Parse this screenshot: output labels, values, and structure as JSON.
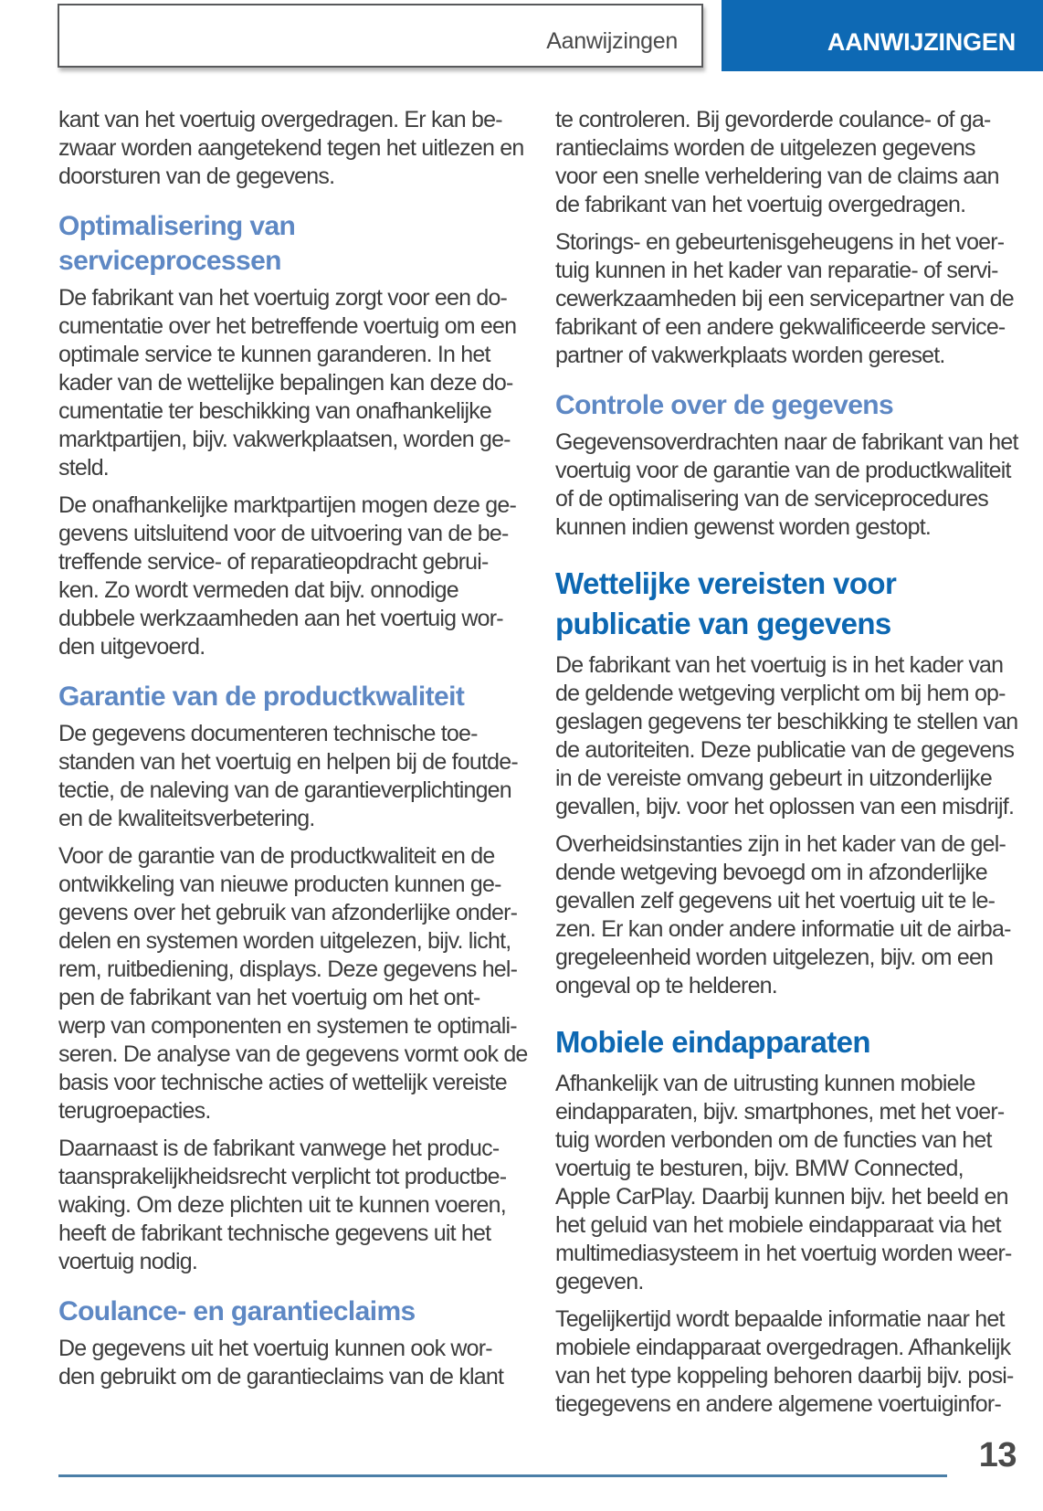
{
  "colors": {
    "tab_blue": "#0e69b4",
    "h2_blue": "#0d68b2",
    "h3_blue": "#5e88c4",
    "rule_blue": "#4b7fa7",
    "body_text": "#3d3d3d",
    "muted_text": "#4a4a4a"
  },
  "header": {
    "running_title": "Aanwijzingen",
    "chapter_tab": "AANWIJZINGEN"
  },
  "footer": {
    "page_number": "13"
  },
  "columns": {
    "left": [
      {
        "type": "p",
        "text": "kant van het voertuig overgedragen. Er kan be-\nzwaar worden aangetekend tegen het uitlezen en\ndoorsturen van de gegevens."
      },
      {
        "type": "h3",
        "text": "Optimalisering van\nserviceprocessen"
      },
      {
        "type": "p",
        "text": "De fabrikant van het voertuig zorgt voor een do-\ncumentatie over het betreffende voertuig om een\noptimale service te kunnen garanderen. In het\nkader van de wettelijke bepalingen kan deze do-\ncumentatie ter beschikking van onafhankelijke\nmarktpartijen, bijv. vakwerkplaatsen, worden ge-\nsteld."
      },
      {
        "type": "p",
        "text": "De onafhankelijke marktpartijen mogen deze ge-\ngevens uitsluitend voor de uitvoering van de be-\ntreffende service- of reparatieopdracht gebrui-\nken. Zo wordt vermeden dat bijv. onnodige\ndubbele werkzaamheden aan het voertuig wor-\nden uitgevoerd."
      },
      {
        "type": "h3",
        "text": "Garantie van de productkwaliteit"
      },
      {
        "type": "p",
        "text": "De gegevens documenteren technische toe-\nstanden van het voertuig en helpen bij de foutde-\ntectie, de naleving van de garantieverplichtingen\nen de kwaliteitsverbetering."
      },
      {
        "type": "p",
        "text": "Voor de garantie van de productkwaliteit en de\nontwikkeling van nieuwe producten kunnen ge-\ngevens over het gebruik van afzonderlijke onder-\ndelen en systemen worden uitgelezen, bijv. licht,\nrem, ruitbediening, displays. Deze gegevens hel-\npen de fabrikant van het voertuig om het ont-\nwerp van componenten en systemen te optimali-\nseren. De analyse van de gegevens vormt ook de\nbasis voor technische acties of wettelijk vereiste\nterugroepacties."
      },
      {
        "type": "p",
        "text": "Daarnaast is de fabrikant vanwege het produc-\ntaansprakelijkheidsrecht verplicht tot productbe-\nwaking. Om deze plichten uit te kunnen voeren,\nheeft de fabrikant technische gegevens uit het\nvoertuig nodig."
      },
      {
        "type": "h3",
        "text": "Coulance- en garantieclaims"
      },
      {
        "type": "p",
        "text": "De gegevens uit het voertuig kunnen ook wor-\nden gebruikt om de garantieclaims van de klant"
      }
    ],
    "right": [
      {
        "type": "p",
        "text": "te controleren. Bij gevorderde coulance- of ga-\nrantieclaims worden de uitgelezen gegevens\nvoor een snelle verheldering van de claims aan\nde fabrikant van het voertuig overgedragen."
      },
      {
        "type": "p",
        "text": "Storings- en gebeurtenisgeheugens in het voer-\ntuig kunnen in het kader van reparatie- of servi-\ncewerkzaamheden bij een servicepartner van de\nfabrikant of een andere gekwalificeerde service-\npartner of vakwerkplaats worden gereset."
      },
      {
        "type": "h3",
        "text": "Controle over de gegevens"
      },
      {
        "type": "p",
        "text": "Gegevensoverdrachten naar de fabrikant van het\nvoertuig voor de garantie van de productkwaliteit\nof de optimalisering van de serviceprocedures\nkunnen indien gewenst worden gestopt."
      },
      {
        "type": "h2",
        "text": "Wettelijke vereisten voor\npublicatie van gegevens"
      },
      {
        "type": "p",
        "text": "De fabrikant van het voertuig is in het kader van\nde geldende wetgeving verplicht om bij hem op-\ngeslagen gegevens ter beschikking te stellen van\nde autoriteiten. Deze publicatie van de gegevens\nin de vereiste omvang gebeurt in uitzonderlijke\ngevallen, bijv. voor het oplossen van een misdrijf."
      },
      {
        "type": "p",
        "text": "Overheidsinstanties zijn in het kader van de gel-\ndende wetgeving bevoegd om in afzonderlijke\ngevallen zelf gegevens uit het voertuig uit te le-\nzen. Er kan onder andere informatie uit de airba-\ngregeleenheid worden uitgelezen, bijv. om een\nongeval op te helderen."
      },
      {
        "type": "h2",
        "text": "Mobiele eindapparaten"
      },
      {
        "type": "p",
        "text": "Afhankelijk van de uitrusting kunnen mobiele\neindapparaten, bijv. smartphones, met het voer-\ntuig worden verbonden om de functies van het\nvoertuig te besturen, bijv. BMW Connected,\nApple CarPlay. Daarbij kunnen bijv. het beeld en\nhet geluid van het mobiele eindapparaat via het\nmultimediasysteem in het voertuig worden weer-\ngegeven."
      },
      {
        "type": "p",
        "text": "Tegelijkertijd wordt bepaalde informatie naar het\nmobiele eindapparaat overgedragen. Afhankelijk\nvan het type koppeling behoren daarbij bijv. posi-\ntiegegevens en andere algemene voertuiginfor-"
      }
    ]
  }
}
